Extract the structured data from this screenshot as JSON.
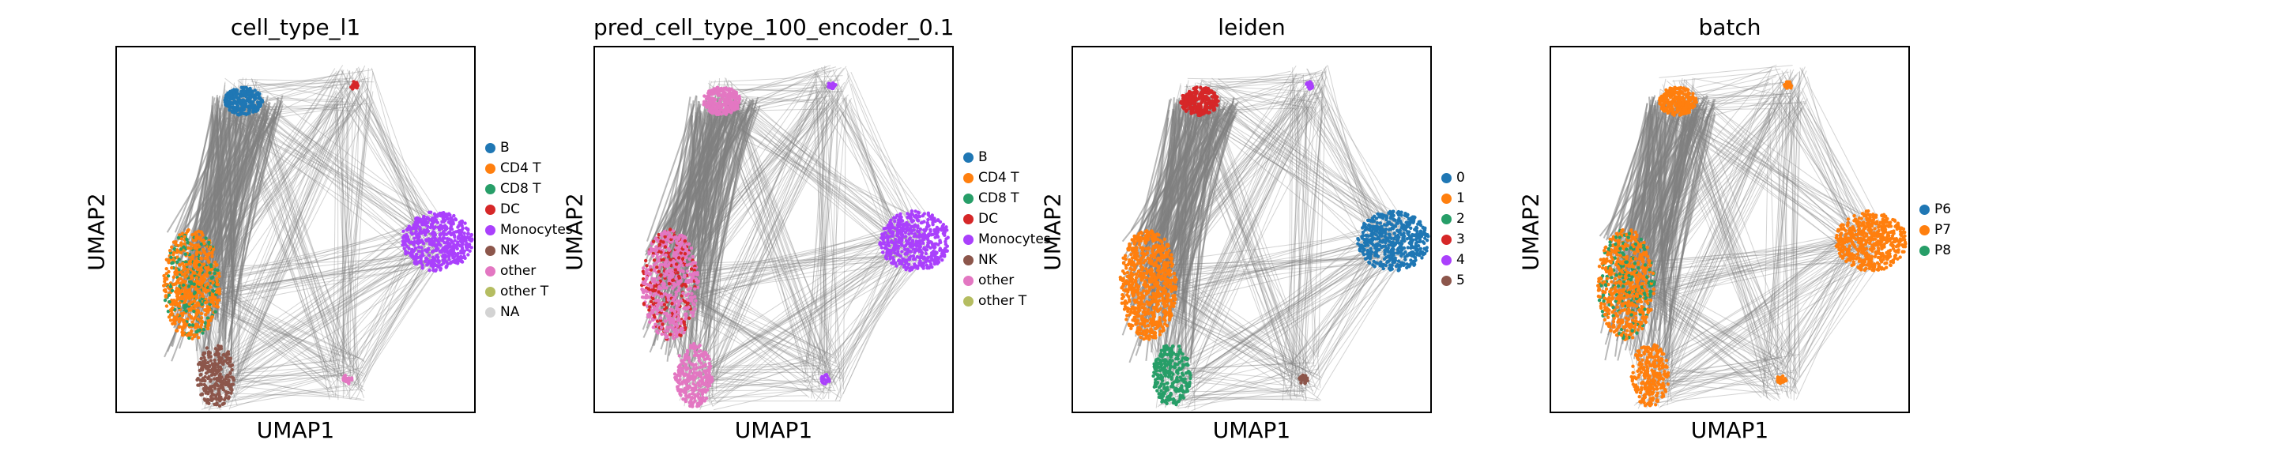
{
  "chart_data": [
    {
      "type": "scatter",
      "title": "cell_type_l1",
      "xlabel": "UMAP1",
      "ylabel": "UMAP2",
      "grid": false,
      "legend_placement": "right",
      "legend": [
        {
          "label": "B",
          "color": "#1f77b4"
        },
        {
          "label": "CD4 T",
          "color": "#ff7f0e"
        },
        {
          "label": "CD8 T",
          "color": "#279e68"
        },
        {
          "label": "DC",
          "color": "#d62728"
        },
        {
          "label": "Monocytes",
          "color": "#aa40fc"
        },
        {
          "label": "NK",
          "color": "#8c564b"
        },
        {
          "label": "other",
          "color": "#e377c2"
        },
        {
          "label": "other T",
          "color": "#b5bd61"
        },
        {
          "label": "NA",
          "color": "#d3d3d3"
        }
      ]
    },
    {
      "type": "scatter",
      "title": "pred_cell_type_100_encoder_0.1",
      "xlabel": "UMAP1",
      "ylabel": "UMAP2",
      "grid": false,
      "legend_placement": "right",
      "legend": [
        {
          "label": "B",
          "color": "#1f77b4"
        },
        {
          "label": "CD4 T",
          "color": "#ff7f0e"
        },
        {
          "label": "CD8 T",
          "color": "#279e68"
        },
        {
          "label": "DC",
          "color": "#d62728"
        },
        {
          "label": "Monocytes",
          "color": "#aa40fc"
        },
        {
          "label": "NK",
          "color": "#8c564b"
        },
        {
          "label": "other",
          "color": "#e377c2"
        },
        {
          "label": "other T",
          "color": "#b5bd61"
        }
      ]
    },
    {
      "type": "scatter",
      "title": "leiden",
      "xlabel": "UMAP1",
      "ylabel": "UMAP2",
      "grid": false,
      "legend_placement": "right",
      "legend": [
        {
          "label": "0",
          "color": "#1f77b4"
        },
        {
          "label": "1",
          "color": "#ff7f0e"
        },
        {
          "label": "2",
          "color": "#279e68"
        },
        {
          "label": "3",
          "color": "#d62728"
        },
        {
          "label": "4",
          "color": "#aa40fc"
        },
        {
          "label": "5",
          "color": "#8c564b"
        }
      ]
    },
    {
      "type": "scatter",
      "title": "batch",
      "xlabel": "UMAP1",
      "ylabel": "UMAP2",
      "grid": false,
      "legend_placement": "right",
      "legend": [
        {
          "label": "P6",
          "color": "#1f77b4"
        },
        {
          "label": "P7",
          "color": "#ff7f0e"
        },
        {
          "label": "P8",
          "color": "#279e68"
        }
      ]
    }
  ]
}
